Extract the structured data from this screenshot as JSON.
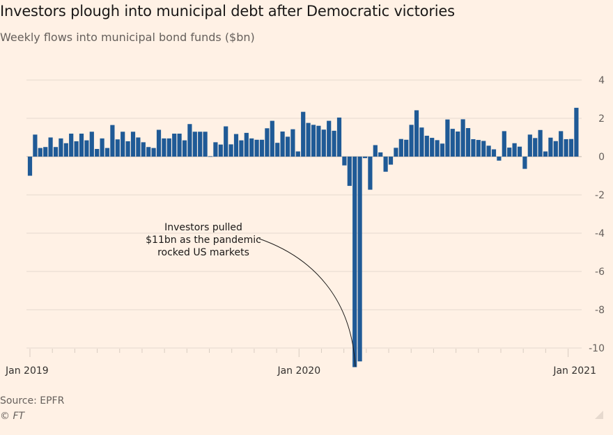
{
  "title": "Investors plough into municipal debt after Democratic victories",
  "subtitle": "Weekly flows into municipal bond funds ($bn)",
  "source": "Source: EPFR",
  "copyright": "© FT",
  "colors": {
    "bar": "#1f5a96",
    "background": "#fff1e5",
    "grid": "#e6d9ce"
  },
  "chart_data": {
    "type": "bar",
    "title": "Investors plough into municipal debt after Democratic victories",
    "subtitle": "Weekly flows into municipal bond funds ($bn)",
    "frequency": "weekly",
    "x_ticks": [
      "Jan 2019",
      "Jan 2020",
      "Jan 2021"
    ],
    "y_ticks": [
      4,
      2,
      0,
      -2,
      -4,
      -6,
      -8,
      -10
    ],
    "ylim": [
      -11,
      4
    ],
    "y_axis_side": "right",
    "grid": true,
    "values": [
      -1.0,
      1.15,
      0.45,
      0.5,
      1.0,
      0.5,
      0.95,
      0.7,
      1.2,
      0.8,
      1.2,
      0.85,
      1.3,
      0.4,
      0.95,
      0.45,
      1.65,
      0.9,
      1.3,
      0.8,
      1.3,
      1.0,
      0.75,
      0.5,
      0.45,
      1.4,
      0.95,
      0.95,
      1.2,
      1.2,
      0.85,
      1.7,
      1.3,
      1.3,
      1.3,
      0.02,
      0.75,
      0.63,
      1.58,
      0.64,
      1.18,
      0.85,
      1.24,
      0.95,
      0.88,
      0.88,
      1.48,
      1.87,
      0.72,
      1.31,
      1.04,
      1.43,
      0.27,
      2.34,
      1.76,
      1.66,
      1.61,
      1.41,
      1.87,
      1.35,
      2.04,
      -0.46,
      -1.53,
      -11.0,
      -10.7,
      -0.08,
      -1.73,
      0.6,
      0.22,
      -0.79,
      -0.42,
      0.46,
      0.92,
      0.88,
      1.66,
      2.42,
      1.52,
      1.09,
      0.98,
      0.86,
      0.68,
      1.94,
      1.45,
      1.31,
      1.95,
      1.49,
      0.91,
      0.87,
      0.82,
      0.57,
      0.38,
      -0.21,
      1.33,
      0.47,
      0.7,
      0.52,
      -0.64,
      1.15,
      0.97,
      1.39,
      0.27,
      0.99,
      0.81,
      1.33,
      0.91,
      0.92,
      2.55
    ],
    "annotation": {
      "lines": [
        "Investors pulled",
        "$11bn as the pandemic",
        "rocked US markets"
      ]
    }
  }
}
